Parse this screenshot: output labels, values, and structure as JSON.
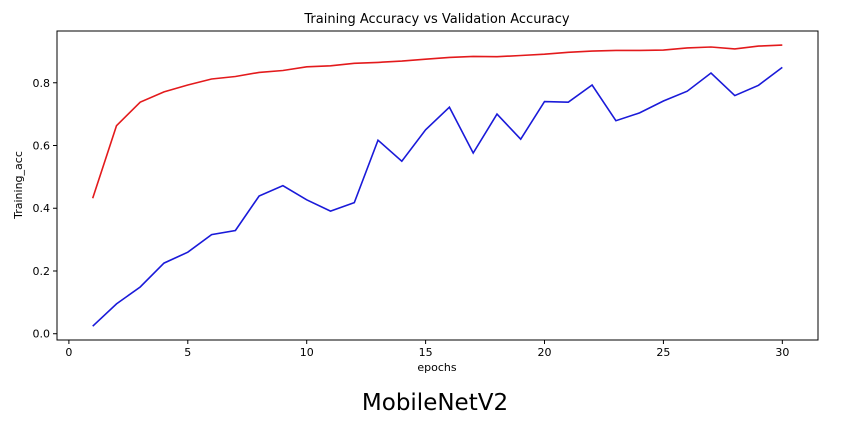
{
  "chart_data": {
    "type": "line",
    "title": "Training Accuracy vs Validation Accuracy",
    "xlabel": "epochs",
    "ylabel": "Training_acc",
    "xlim": [
      -0.5,
      31.5
    ],
    "ylim": [
      -0.02,
      0.965
    ],
    "xticks": [
      0,
      5,
      10,
      15,
      20,
      25,
      30
    ],
    "yticks": [
      0.0,
      0.2,
      0.4,
      0.6,
      0.8
    ],
    "grid": false,
    "x": [
      1,
      2,
      3,
      4,
      5,
      6,
      7,
      8,
      9,
      10,
      11,
      12,
      13,
      14,
      15,
      16,
      17,
      18,
      19,
      20,
      21,
      22,
      23,
      24,
      25,
      26,
      27,
      28,
      29,
      30
    ],
    "series": [
      {
        "color": "#e31a1c",
        "values": [
          0.432,
          0.663,
          0.738,
          0.771,
          0.793,
          0.812,
          0.82,
          0.833,
          0.839,
          0.851,
          0.854,
          0.862,
          0.865,
          0.869,
          0.875,
          0.881,
          0.884,
          0.883,
          0.887,
          0.891,
          0.897,
          0.901,
          0.903,
          0.903,
          0.904,
          0.911,
          0.914,
          0.908,
          0.917,
          0.92
        ]
      },
      {
        "color": "#1a1ad9",
        "values": [
          0.024,
          0.095,
          0.149,
          0.225,
          0.26,
          0.316,
          0.329,
          0.439,
          0.472,
          0.427,
          0.391,
          0.418,
          0.617,
          0.55,
          0.65,
          0.722,
          0.576,
          0.7,
          0.62,
          0.74,
          0.738,
          0.793,
          0.679,
          0.704,
          0.742,
          0.773,
          0.831,
          0.759,
          0.792,
          0.849
        ]
      }
    ]
  },
  "caption": "MobileNetV2"
}
